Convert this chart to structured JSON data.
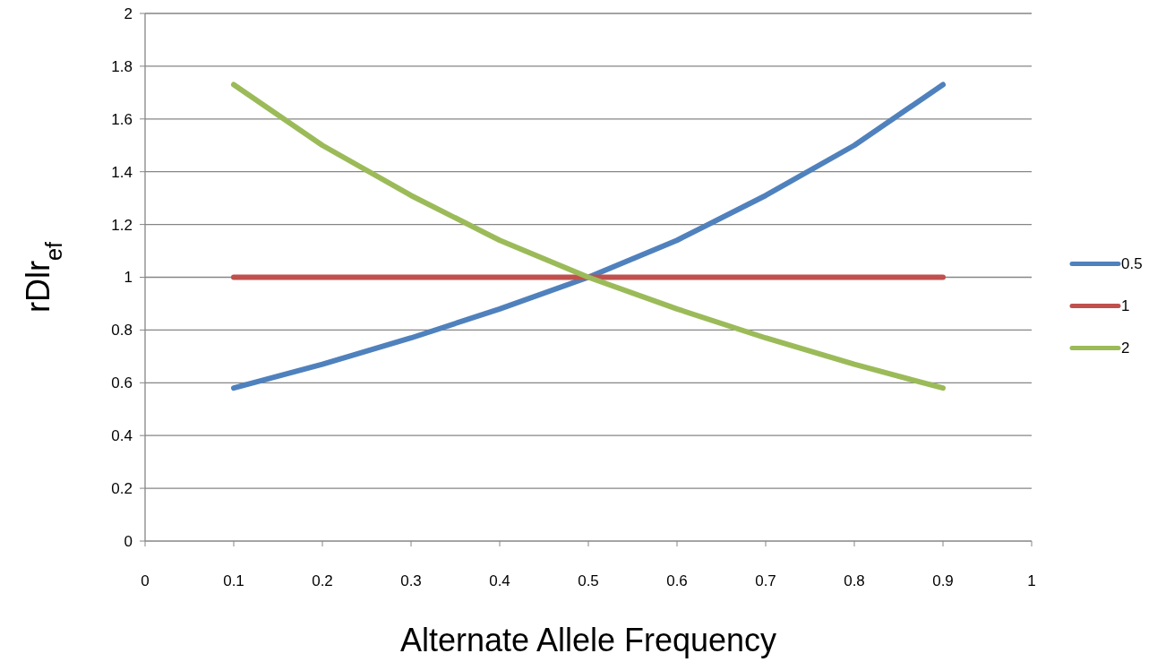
{
  "chart_data": {
    "type": "line",
    "xlabel": "Alternate Allele Frequency",
    "ylabel": "rDlr$_{ef}$",
    "x": [
      0.1,
      0.2,
      0.3,
      0.4,
      0.5,
      0.6,
      0.7,
      0.8,
      0.9
    ],
    "series": [
      {
        "name": "0.5",
        "color": "#4f81bd",
        "values": [
          0.58,
          0.67,
          0.77,
          0.88,
          1.0,
          1.14,
          1.31,
          1.5,
          1.73
        ]
      },
      {
        "name": "1",
        "color": "#c0504d",
        "values": [
          1,
          1,
          1,
          1,
          1,
          1,
          1,
          1,
          1
        ]
      },
      {
        "name": "2",
        "color": "#9bbb59",
        "values": [
          1.73,
          1.5,
          1.31,
          1.14,
          1.0,
          0.88,
          0.77,
          0.67,
          0.58
        ]
      }
    ],
    "xlim": [
      0,
      1
    ],
    "xticks": [
      0,
      0.1,
      0.2,
      0.3,
      0.4,
      0.5,
      0.6,
      0.7,
      0.8,
      0.9,
      1
    ],
    "ylim": [
      0,
      2
    ],
    "yticks": [
      0,
      0.2,
      0.4,
      0.6,
      0.8,
      1,
      1.2,
      1.4,
      1.6,
      1.8,
      2
    ],
    "grid": "y",
    "legend": "right",
    "marker": "none",
    "line_style": "solid"
  }
}
